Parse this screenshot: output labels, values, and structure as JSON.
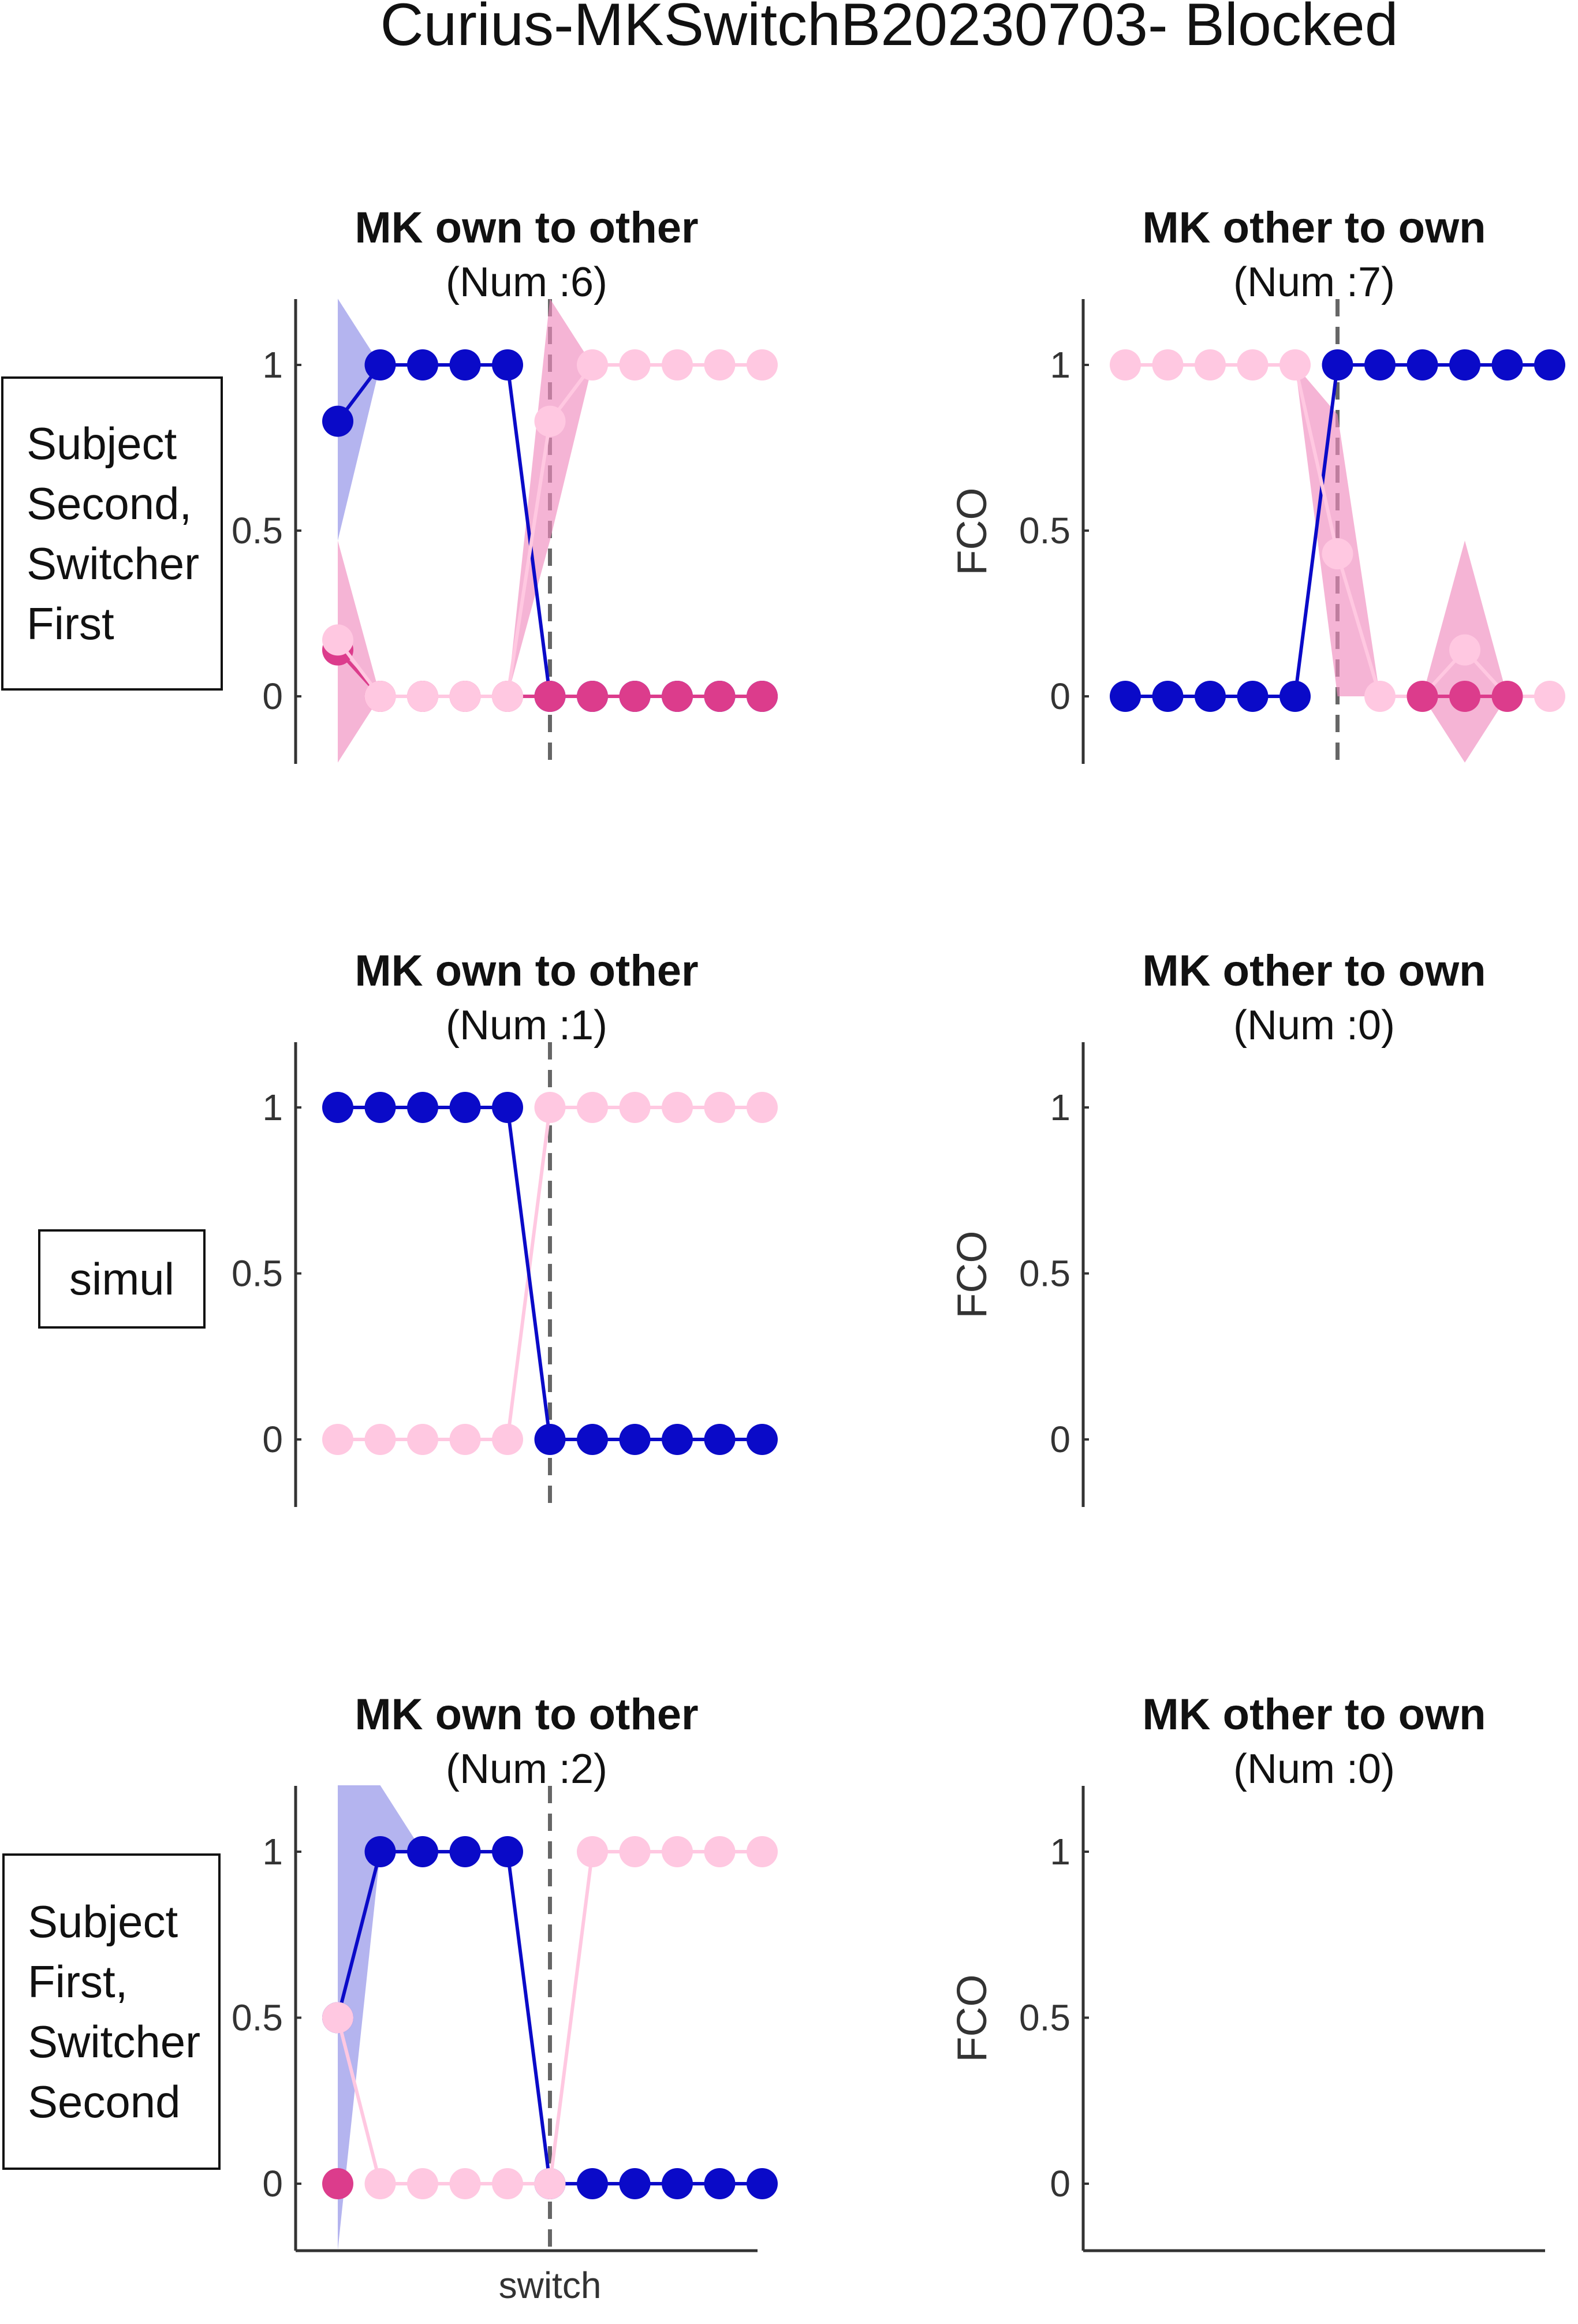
{
  "figure": {
    "title": "Curius-MKSwitchB20230703- Blocked"
  },
  "colors": {
    "blue": "#0a0ac8",
    "blue_band": "#8c8ce6",
    "pink": "#ffc8e1",
    "pink_band": "#f08cbe",
    "magenta": "#dc3c8c"
  },
  "chart_data": [
    {
      "type": "line",
      "row": 0,
      "col": 0,
      "title": "MK own to other",
      "subtitle": "(Num :6)",
      "ylabel": "",
      "ylim": [
        -0.2,
        1.2
      ],
      "yticks": [
        "0",
        "0.5",
        "1"
      ],
      "x": [
        1,
        2,
        3,
        4,
        5,
        6,
        7,
        8,
        9,
        10,
        11
      ],
      "switch_x": 6,
      "series": [
        {
          "color": "blue",
          "values": [
            0.83,
            1,
            1,
            1,
            1,
            0,
            0,
            0,
            0,
            0,
            0
          ],
          "band": {
            "color": "blue_band",
            "lower": [
              0.47,
              1,
              1,
              1,
              1,
              0,
              0,
              0,
              0,
              0,
              0
            ],
            "upper": [
              1.2,
              1,
              1,
              1,
              1,
              0,
              0,
              0,
              0,
              0,
              0
            ]
          }
        },
        {
          "color": "magenta",
          "values": [
            0.14,
            0,
            0,
            0,
            0,
            0,
            0,
            0,
            0,
            0,
            0
          ]
        },
        {
          "color": "pink",
          "values": [
            0.17,
            0,
            0,
            0,
            0,
            0.83,
            1,
            1,
            1,
            1,
            1
          ],
          "band": {
            "color": "pink_band",
            "lower": [
              -0.2,
              0,
              0,
              0,
              0,
              0.47,
              1,
              1,
              1,
              1,
              1
            ],
            "upper": [
              0.47,
              0,
              0,
              0,
              0,
              1.2,
              1,
              1,
              1,
              1,
              1
            ]
          }
        }
      ]
    },
    {
      "type": "line",
      "row": 0,
      "col": 1,
      "title": "MK other to own",
      "subtitle": "(Num :7)",
      "ylabel": "FCO",
      "ylim": [
        -0.2,
        1.2
      ],
      "yticks": [
        "0",
        "0.5",
        "1"
      ],
      "x": [
        1,
        2,
        3,
        4,
        5,
        6,
        7,
        8,
        9,
        10,
        11
      ],
      "switch_x": 6,
      "series": [
        {
          "color": "blue",
          "values": [
            0,
            0,
            0,
            0,
            0,
            1,
            1,
            1,
            1,
            1,
            1
          ]
        },
        {
          "color": "pink",
          "values": [
            1,
            1,
            1,
            1,
            1,
            0.43,
            0,
            0,
            0.14,
            0,
            0
          ],
          "band": {
            "color": "pink_band",
            "lower": [
              1,
              1,
              1,
              1,
              1,
              0,
              0,
              0,
              -0.2,
              0,
              0
            ],
            "upper": [
              1,
              1,
              1,
              1,
              1,
              0.85,
              0,
              0,
              0.47,
              0,
              0
            ]
          }
        },
        {
          "color": "magenta",
          "values": [
            null,
            null,
            null,
            null,
            null,
            null,
            null,
            0,
            0,
            0,
            null
          ]
        }
      ]
    },
    {
      "type": "line",
      "row": 1,
      "col": 0,
      "title": "MK own to other",
      "subtitle": "(Num :1)",
      "ylabel": "",
      "ylim": [
        -0.2,
        1.2
      ],
      "yticks": [
        "0",
        "0.5",
        "1"
      ],
      "x": [
        1,
        2,
        3,
        4,
        5,
        6,
        7,
        8,
        9,
        10,
        11
      ],
      "switch_x": 6,
      "series": [
        {
          "color": "pink",
          "values": [
            0,
            0,
            0,
            0,
            0,
            1,
            1,
            1,
            1,
            1,
            1
          ]
        },
        {
          "color": "blue",
          "values": [
            1,
            1,
            1,
            1,
            1,
            0,
            0,
            0,
            0,
            0,
            0
          ]
        }
      ]
    },
    {
      "type": "line",
      "row": 1,
      "col": 1,
      "title": "MK other to own",
      "subtitle": "(Num :0)",
      "ylabel": "FCO",
      "ylim": [
        -0.2,
        1.2
      ],
      "yticks": [
        "0",
        "0.5",
        "1"
      ],
      "x": [],
      "series": []
    },
    {
      "type": "line",
      "row": 2,
      "col": 0,
      "title": "MK own to other",
      "subtitle": "(Num :2)",
      "ylabel": "",
      "xlabel": "switch",
      "ylim": [
        -0.2,
        1.2
      ],
      "yticks": [
        "0",
        "0.5",
        "1"
      ],
      "x": [
        1,
        2,
        3,
        4,
        5,
        6,
        7,
        8,
        9,
        10,
        11
      ],
      "switch_x": 6,
      "series": [
        {
          "color": "blue",
          "values": [
            0.5,
            1,
            1,
            1,
            1,
            0,
            0,
            0,
            0,
            0,
            0
          ],
          "band": {
            "color": "blue_band",
            "lower": [
              -0.2,
              1,
              1,
              1,
              1,
              0,
              0,
              0,
              0,
              0,
              0
            ],
            "upper": [
              1.2,
              1.2,
              1,
              1,
              1,
              0,
              0,
              0,
              0,
              0,
              0
            ]
          }
        },
        {
          "color": "pink",
          "values": [
            0.5,
            0,
            0,
            0,
            0,
            0,
            1,
            1,
            1,
            1,
            1
          ]
        },
        {
          "color": "magenta",
          "values": [
            0,
            null,
            null,
            null,
            null,
            null,
            null,
            null,
            null,
            null,
            null
          ]
        }
      ]
    },
    {
      "type": "line",
      "row": 2,
      "col": 1,
      "title": "MK other to own",
      "subtitle": "(Num :0)",
      "ylabel": "FCO",
      "ylim": [
        -0.2,
        1.2
      ],
      "yticks": [
        "0",
        "0.5",
        "1"
      ],
      "x": [],
      "series": []
    }
  ],
  "row_labels": [
    {
      "lines": [
        "Subject",
        "Second,",
        "Switcher",
        "First"
      ]
    },
    {
      "lines": [
        "simul"
      ]
    },
    {
      "lines": [
        "Subject",
        "First,",
        "Switcher",
        "Second"
      ]
    }
  ]
}
